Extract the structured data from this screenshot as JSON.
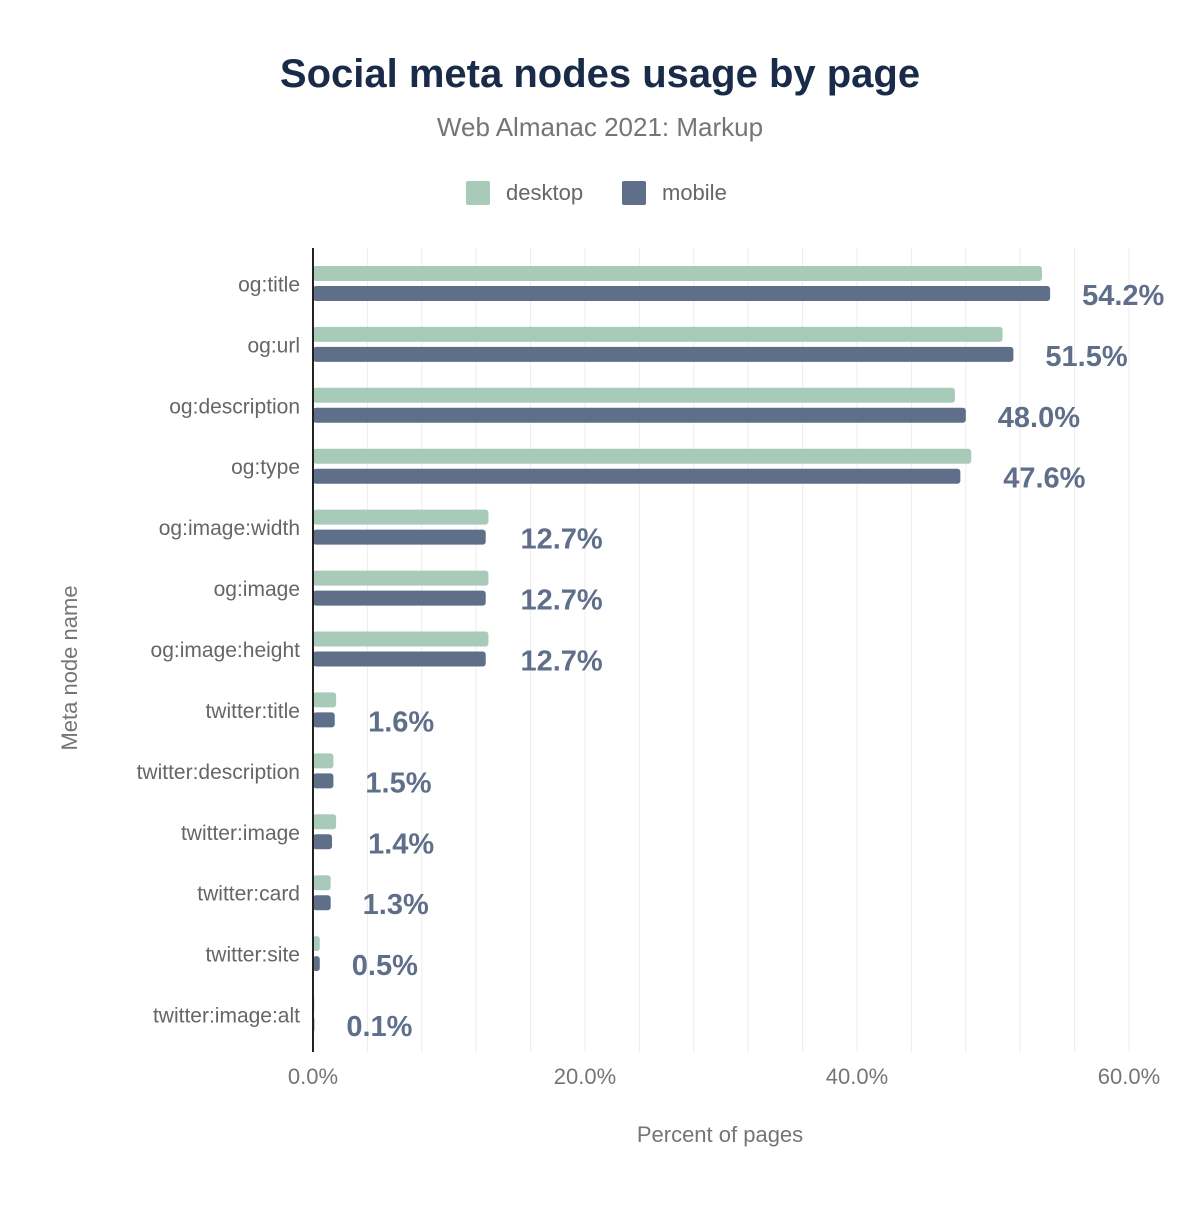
{
  "title": "Social meta nodes usage by page",
  "subtitle": "Web Almanac 2021: Markup",
  "legend": [
    {
      "name": "desktop",
      "color": "#a8cbb9"
    },
    {
      "name": "mobile",
      "color": "#5f6f8a"
    }
  ],
  "chart_data": {
    "type": "bar",
    "orientation": "horizontal",
    "categories": [
      "og:title",
      "og:url",
      "og:description",
      "og:type",
      "og:image:width",
      "og:image",
      "og:image:height",
      "twitter:title",
      "twitter:description",
      "twitter:image",
      "twitter:card",
      "twitter:site",
      "twitter:image:alt"
    ],
    "series": [
      {
        "name": "desktop",
        "color": "#a8cbb9",
        "values": [
          53.6,
          50.7,
          47.2,
          48.4,
          12.9,
          12.9,
          12.9,
          1.7,
          1.5,
          1.7,
          1.3,
          0.5,
          0.1
        ]
      },
      {
        "name": "mobile",
        "color": "#5f6f8a",
        "values": [
          54.2,
          51.5,
          48.0,
          47.6,
          12.7,
          12.7,
          12.7,
          1.6,
          1.5,
          1.4,
          1.3,
          0.5,
          0.1
        ]
      }
    ],
    "data_labels": [
      "54.2%",
      "51.5%",
      "48.0%",
      "47.6%",
      "12.7%",
      "12.7%",
      "12.7%",
      "1.6%",
      "1.5%",
      "1.4%",
      "1.3%",
      "0.5%",
      "0.1%"
    ],
    "xlabel": "Percent of pages",
    "ylabel": "Meta node name",
    "xlim": [
      0,
      60
    ],
    "x_ticks": [
      0,
      20,
      40,
      60
    ],
    "x_tick_labels": [
      "0.0%",
      "20.0%",
      "40.0%",
      "60.0%"
    ],
    "grid": true,
    "legend_position": "top-center",
    "label_color": "#5f6f8a"
  }
}
